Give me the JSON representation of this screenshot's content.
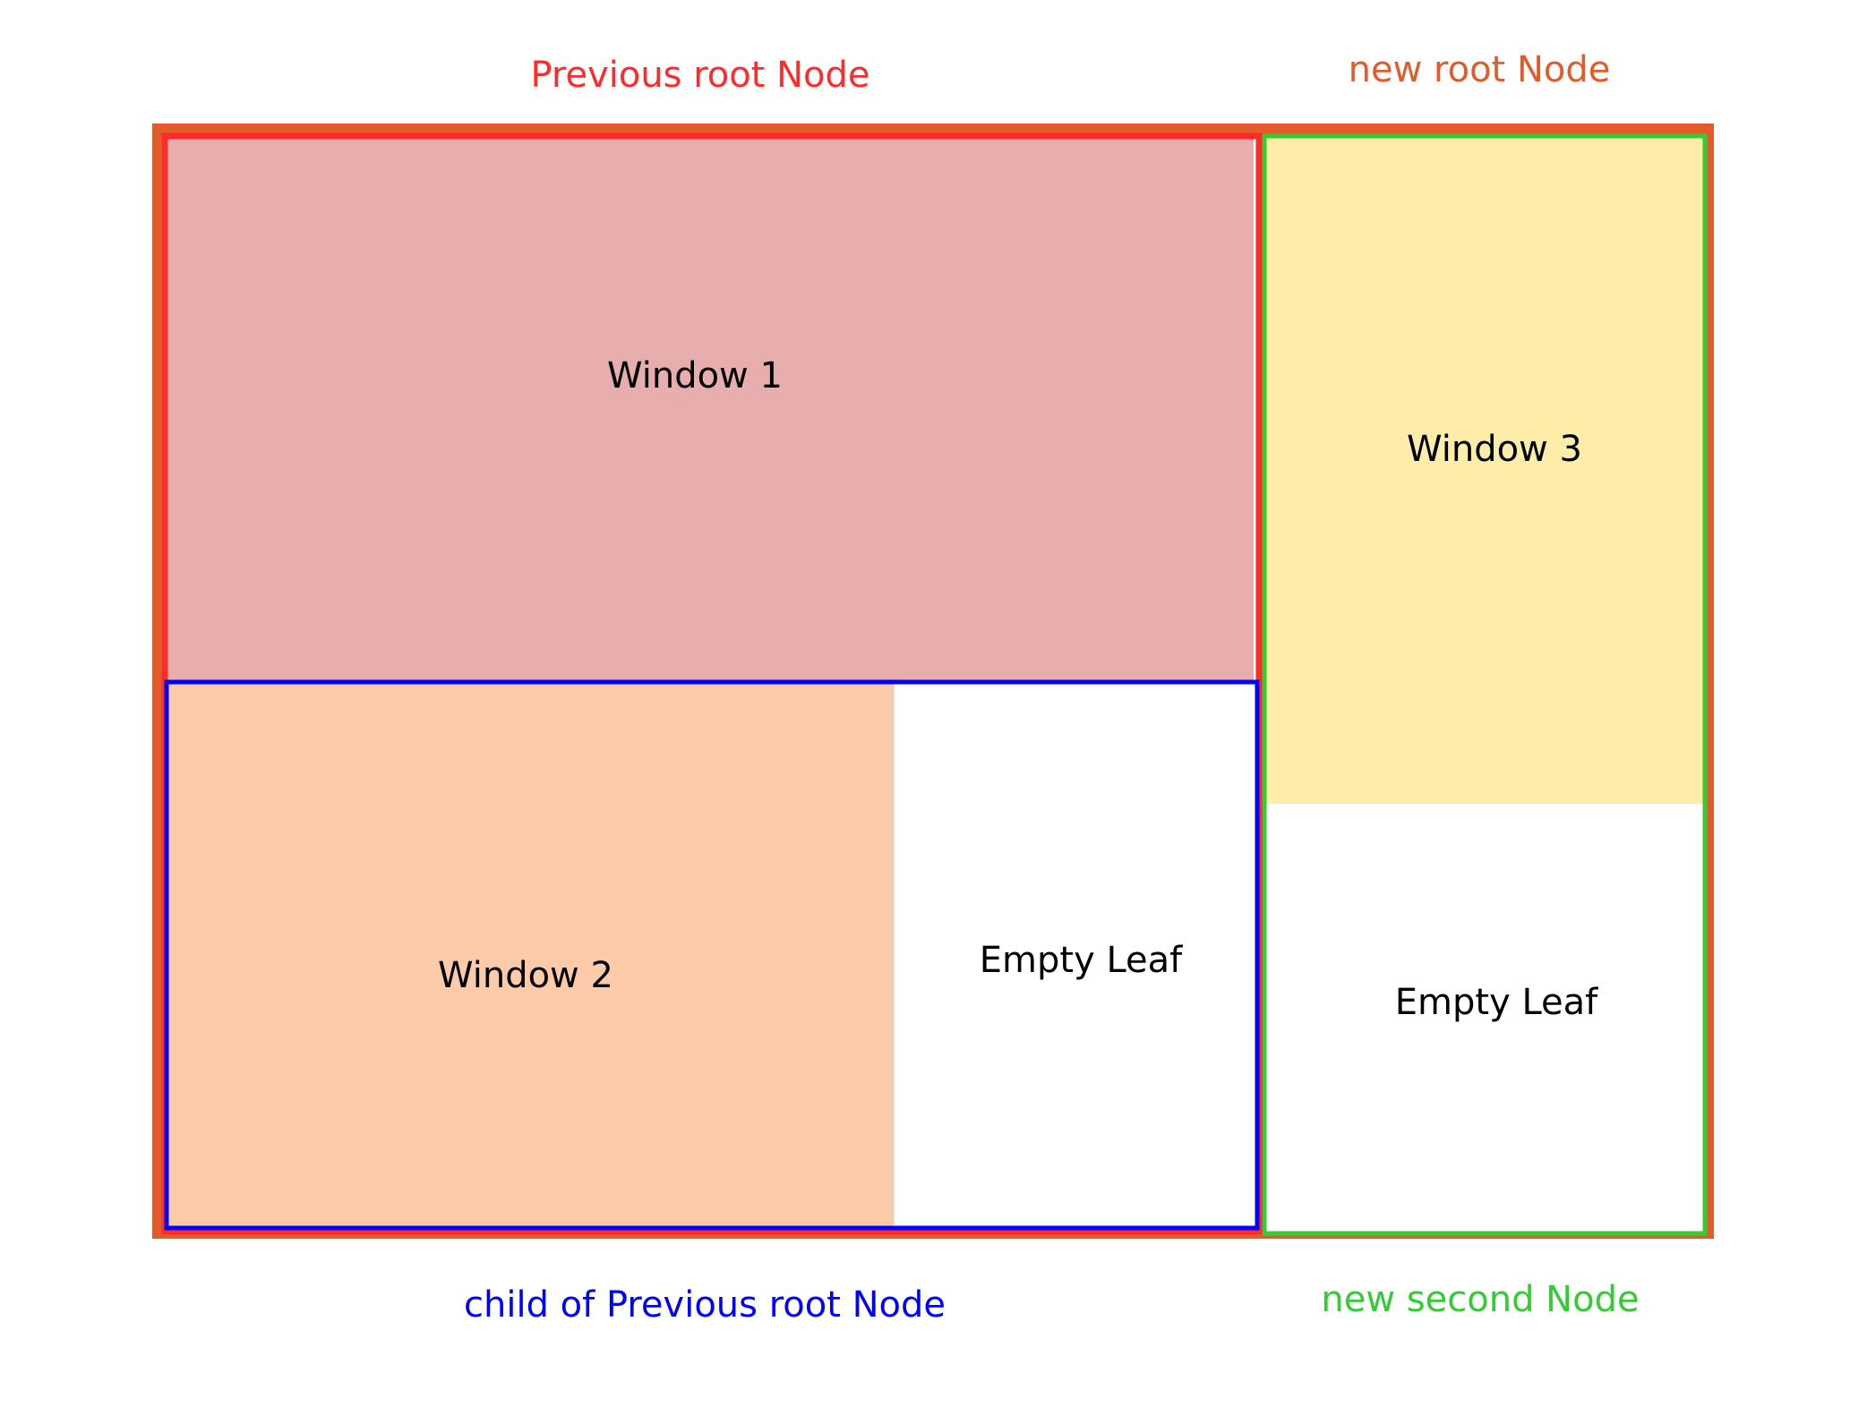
{
  "labels": {
    "previous_root": "Previous root Node",
    "new_root": "new root Node",
    "child_of_previous": "child of Previous root Node",
    "new_second": "new second Node"
  },
  "cells": {
    "window1": "Window 1",
    "window2": "Window 2",
    "window3": "Window 3",
    "empty_leaf_left": "Empty Leaf",
    "empty_leaf_right": "Empty Leaf"
  },
  "colors": {
    "new_root_border": "#E35B2A",
    "previous_root_border": "#FF2A2A",
    "child_border": "#0000FF",
    "new_second_border": "#33CC33",
    "window1_fill": "#E8AEAE",
    "window2_fill": "#FDCBAA",
    "window3_fill": "#FEEDA8",
    "empty_fill": "#FFFFFF"
  }
}
